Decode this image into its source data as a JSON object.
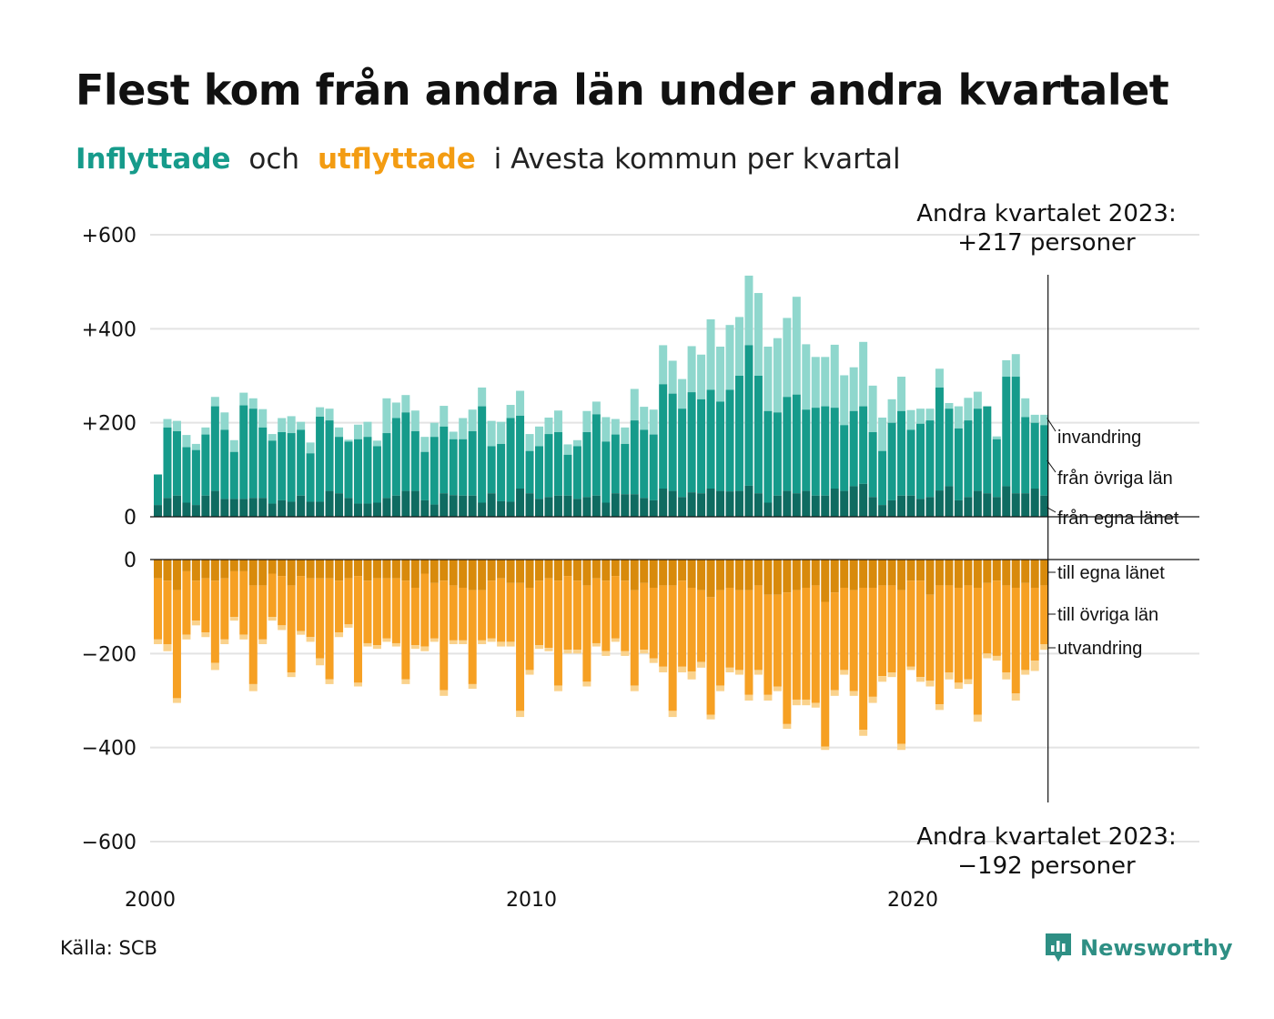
{
  "title": "Flest kom från andra län under andra kvartalet",
  "subtitle": {
    "part1": "Inflyttade",
    "part2": "och",
    "part3": "utflyttade",
    "part4": "i Avesta kommun per kvartal"
  },
  "source": "Källa: SCB",
  "logo_text": "Newsworthy",
  "annotation_top": {
    "line1": "Andra kvartalet 2023:",
    "line2": "+217 personer"
  },
  "annotation_bottom": {
    "line1": "Andra kvartalet 2023:",
    "line2": "−192 personer"
  },
  "colors": {
    "in_local": "#0f6b61",
    "in_domestic": "#169b8b",
    "in_immigration": "#8fd7cd",
    "out_local": "#d88a0c",
    "out_domestic": "#f6a023",
    "out_emigration": "#fad28c",
    "logo": "#2e8f84"
  },
  "chart_data": {
    "type": "bar",
    "x_start": "2000 Q1",
    "x_end": "2023 Q2",
    "x_ticks": [
      "2000",
      "2010",
      "2020"
    ],
    "y_ticks_top": [
      "+600",
      "+400",
      "+200",
      "0"
    ],
    "y_ticks_bottom": [
      "0",
      "−200",
      "−400",
      "−600"
    ],
    "ylim_top": [
      0,
      600
    ],
    "ylim_bottom": [
      -600,
      0
    ],
    "series_labels_in": [
      "invandring",
      "från övriga län",
      "från egna länet"
    ],
    "series_labels_out": [
      "till egna länet",
      "till övriga län",
      "utvandring"
    ],
    "in_total": [
      90,
      208,
      204,
      174,
      155,
      190,
      255,
      222,
      163,
      264,
      252,
      229,
      176,
      210,
      214,
      202,
      158,
      233,
      230,
      190,
      164,
      196,
      202,
      162,
      252,
      243,
      259,
      226,
      170,
      200,
      236,
      181,
      210,
      228,
      275,
      204,
      202,
      238,
      268,
      176,
      192,
      211,
      226,
      154,
      163,
      225,
      245,
      212,
      208,
      190,
      272,
      234,
      228,
      365,
      332,
      293,
      363,
      345,
      420,
      362,
      408,
      425,
      513,
      476,
      362,
      380,
      423,
      468,
      367,
      340,
      340,
      366,
      301,
      318,
      372,
      279,
      211,
      250,
      298,
      227,
      230,
      230,
      315,
      242,
      235,
      253,
      266,
      230,
      171,
      333,
      346,
      252,
      217,
      217
    ],
    "in_local": [
      25,
      40,
      45,
      30,
      25,
      45,
      55,
      38,
      38,
      38,
      40,
      40,
      28,
      35,
      32,
      45,
      32,
      32,
      55,
      50,
      40,
      28,
      28,
      30,
      40,
      45,
      55,
      55,
      35,
      26,
      50,
      46,
      45,
      45,
      30,
      50,
      33,
      32,
      60,
      50,
      38,
      42,
      45,
      45,
      38,
      42,
      45,
      30,
      50,
      48,
      48,
      40,
      35,
      60,
      55,
      42,
      52,
      50,
      60,
      55,
      54,
      55,
      66,
      50,
      30,
      45,
      55,
      50,
      55,
      45,
      45,
      60,
      55,
      65,
      70,
      42,
      25,
      35,
      45,
      45,
      38,
      42,
      56,
      65,
      35,
      42,
      55,
      50,
      42,
      65,
      50,
      50,
      60,
      45
    ],
    "in_domestic": [
      90,
      190,
      182,
      148,
      142,
      175,
      235,
      185,
      138,
      237,
      230,
      190,
      162,
      180,
      178,
      185,
      135,
      213,
      205,
      170,
      160,
      165,
      170,
      150,
      178,
      210,
      222,
      182,
      138,
      170,
      192,
      165,
      165,
      182,
      235,
      150,
      155,
      210,
      215,
      140,
      150,
      176,
      180,
      132,
      150,
      180,
      218,
      160,
      175,
      155,
      205,
      185,
      175,
      282,
      262,
      230,
      265,
      250,
      270,
      245,
      270,
      300,
      365,
      300,
      225,
      222,
      255,
      260,
      228,
      232,
      235,
      232,
      195,
      225,
      235,
      180,
      140,
      200,
      225,
      185,
      198,
      205,
      275,
      230,
      188,
      205,
      230,
      235,
      165,
      298,
      298,
      212,
      200,
      195
    ],
    "out_total": [
      -180,
      -195,
      -305,
      -170,
      -140,
      -165,
      -235,
      -180,
      -130,
      -170,
      -280,
      -180,
      -130,
      -150,
      -250,
      -160,
      -175,
      -225,
      -265,
      -165,
      -145,
      -270,
      -185,
      -190,
      -175,
      -185,
      -265,
      -190,
      -195,
      -175,
      -290,
      -180,
      -180,
      -275,
      -180,
      -175,
      -185,
      -185,
      -335,
      -245,
      -190,
      -195,
      -280,
      -200,
      -200,
      -270,
      -185,
      -205,
      -175,
      -205,
      -280,
      -200,
      -220,
      -240,
      -335,
      -240,
      -255,
      -230,
      -340,
      -280,
      -240,
      -245,
      -300,
      -245,
      -300,
      -280,
      -360,
      -310,
      -310,
      -315,
      -405,
      -290,
      -245,
      -290,
      -375,
      -305,
      -260,
      -250,
      -405,
      -235,
      -260,
      -270,
      -320,
      -255,
      -275,
      -265,
      -345,
      -210,
      -215,
      -255,
      -300,
      -245,
      -237,
      -192
    ],
    "out_local": [
      -40,
      -45,
      -65,
      -25,
      -45,
      -40,
      -45,
      -40,
      -25,
      -25,
      -55,
      -55,
      -30,
      -35,
      -55,
      -35,
      -40,
      -40,
      -40,
      -45,
      -40,
      -35,
      -45,
      -40,
      -40,
      -40,
      -45,
      -60,
      -30,
      -50,
      -45,
      -55,
      -60,
      -65,
      -65,
      -45,
      -40,
      -50,
      -50,
      -60,
      -45,
      -40,
      -45,
      -35,
      -45,
      -55,
      -40,
      -45,
      -35,
      -45,
      -65,
      -50,
      -60,
      -55,
      -55,
      -45,
      -60,
      -65,
      -80,
      -65,
      -60,
      -65,
      -65,
      -55,
      -75,
      -75,
      -70,
      -65,
      -60,
      -55,
      -90,
      -70,
      -60,
      -65,
      -60,
      -60,
      -55,
      -55,
      -65,
      -45,
      -45,
      -75,
      -55,
      -55,
      -60,
      -55,
      -60,
      -50,
      -45,
      -55,
      -60,
      -50,
      -60,
      -55
    ],
    "out_domestic": [
      -170,
      -180,
      -295,
      -160,
      -130,
      -155,
      -220,
      -170,
      -122,
      -160,
      -265,
      -170,
      -122,
      -140,
      -240,
      -152,
      -165,
      -210,
      -255,
      -155,
      -138,
      -262,
      -178,
      -182,
      -168,
      -178,
      -255,
      -182,
      -185,
      -168,
      -278,
      -172,
      -172,
      -265,
      -172,
      -168,
      -175,
      -175,
      -322,
      -235,
      -182,
      -188,
      -268,
      -192,
      -192,
      -260,
      -178,
      -195,
      -168,
      -195,
      -268,
      -192,
      -210,
      -228,
      -322,
      -228,
      -238,
      -218,
      -330,
      -268,
      -230,
      -235,
      -288,
      -235,
      -288,
      -270,
      -350,
      -298,
      -298,
      -305,
      -398,
      -278,
      -235,
      -280,
      -362,
      -292,
      -248,
      -240,
      -392,
      -228,
      -250,
      -258,
      -308,
      -240,
      -262,
      -255,
      -330,
      -200,
      -205,
      -240,
      -285,
      -235,
      -215,
      -180
    ]
  }
}
